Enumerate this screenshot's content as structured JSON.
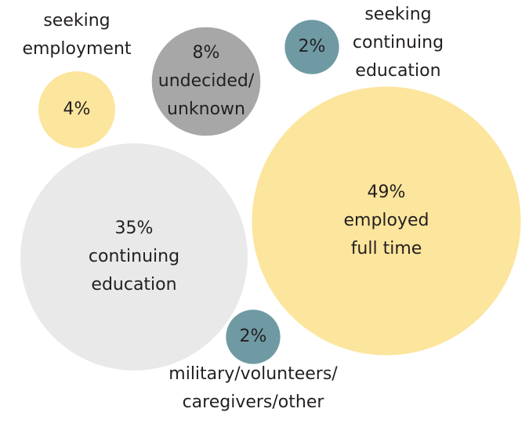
{
  "chart_data": {
    "type": "bubble",
    "categories": [
      "employed\nfull time",
      "continuing\neducation",
      "undecided/\nunknown",
      "seeking\nemployment",
      "seeking\ncontinuing\neducation",
      "military/volunteers/\ncaregivers/other"
    ],
    "values": [
      49,
      35,
      8,
      4,
      2,
      2
    ],
    "value_labels": [
      "49%",
      "35%",
      "8%",
      "4%",
      "2%",
      "2%"
    ],
    "colors": [
      "#fce59c",
      "#e9e9e9",
      "#a7a7a7",
      "#fce59c",
      "#6f9aa4",
      "#6f9aa4"
    ]
  }
}
